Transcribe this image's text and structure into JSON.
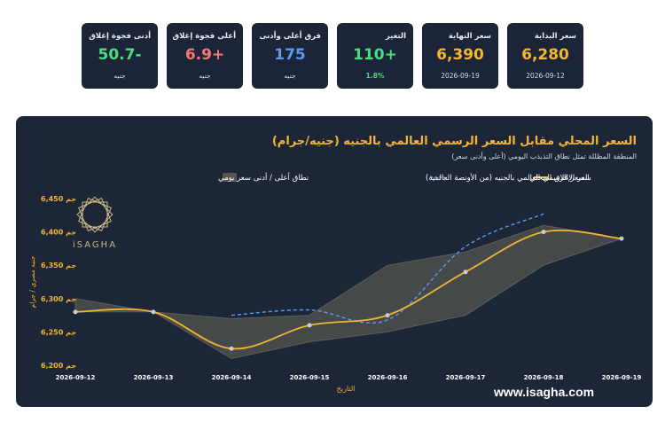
{
  "cards": [
    {
      "label": "سعر البداية",
      "value": "6,280",
      "sub": "2026-09-12",
      "color": "#f2b631"
    },
    {
      "label": "سعر النهاية",
      "value": "6,390",
      "sub": "2026-09-19",
      "color": "#f2b631"
    },
    {
      "label": "التغير",
      "value": "110+",
      "sub": "1.8%",
      "color": "#4ade80",
      "sub_color": "#4ade80"
    },
    {
      "label": "فرق أعلى وأدنى",
      "value": "175",
      "sub": "جنيه",
      "color": "#5b9cf0"
    },
    {
      "label": "أعلى فجوة إغلاق",
      "value": "6.9+",
      "sub": "جنيه",
      "color": "#f47a7a"
    },
    {
      "label": "أدنى فجوة إغلاق",
      "value": "50.7-",
      "sub": "جنيه",
      "color": "#4ade80"
    }
  ],
  "chart_header": {
    "title": "السعر المحلي مقابل السعر الرسمي العالمي بالجنيه (جنيه/جرام)",
    "subtitle": "المنطقة المظللة تمثل نطاق التذبذب اليومي (أعلى وأدنى سعر)"
  },
  "logo": {
    "text": "iSAGHA"
  },
  "website": "www.isagha.com",
  "chart_data": {
    "type": "line",
    "title": "السعر المحلي مقابل السعر الرسمي العالمي بالجنيه (جنيه/جرام)",
    "xlabel": "التاريخ",
    "ylabel": "جنيه مصري / جرام",
    "categories": [
      "2026-09-12",
      "2026-09-13",
      "2026-09-14",
      "2026-09-15",
      "2026-09-16",
      "2026-09-17",
      "2026-09-18",
      "2026-09-19"
    ],
    "yticks": [
      "6,200 جم",
      "6,250 جم",
      "6,300 جم",
      "6,350 جم",
      "6,400 جم",
      "6,450 جم"
    ],
    "ylim": [
      6200,
      6450
    ],
    "grid": false,
    "legend_position": "top",
    "series": [
      {
        "name": "سعر الإغلاق المحلي",
        "style": "solid",
        "color": "#f2b631",
        "values": [
          6280,
          6280,
          6225,
          6260,
          6275,
          6340,
          6400,
          6390
        ]
      },
      {
        "name": "السعر الرسمي العالمي بالجنيه (من الأونصة العالمية)",
        "style": "dashed",
        "color": "#5b9cf0",
        "x": [
          2,
          3,
          4,
          5,
          6
        ],
        "values": [
          6275,
          6283,
          6268,
          6378,
          6427
        ]
      },
      {
        "name": "نطاق أعلى / أدنى سعر يومي",
        "style": "band",
        "color": "#7a7560",
        "high": [
          6300,
          6280,
          6270,
          6275,
          6350,
          6370,
          6410,
          6390
        ],
        "low": [
          6280,
          6280,
          6210,
          6235,
          6250,
          6275,
          6350,
          6390
        ]
      }
    ]
  }
}
